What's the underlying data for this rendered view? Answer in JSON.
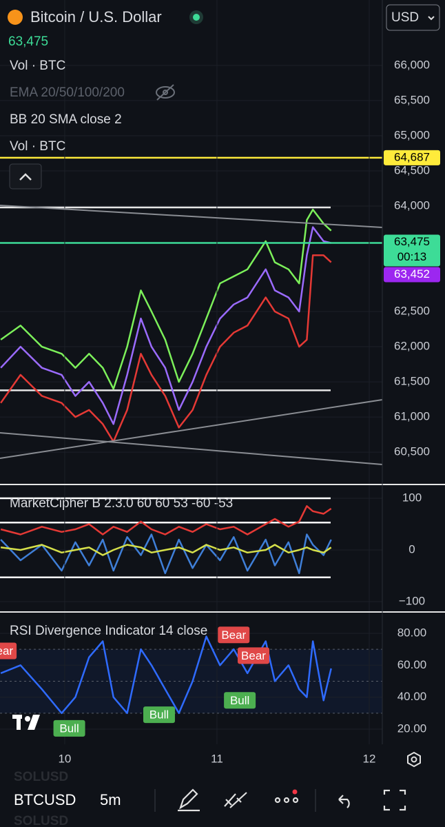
{
  "header": {
    "title": "Bitcoin / U.S. Dollar",
    "price": "63,475",
    "currency": "USD",
    "indicators": [
      "Vol · BTC",
      "EMA 20/50/100/200",
      "BB 20 SMA close 2",
      "Vol · BTC"
    ]
  },
  "toolbar": {
    "symbol": "BTCUSD",
    "interval": "5m",
    "ghost": [
      "SOLUSD",
      "SOLUSD"
    ]
  },
  "chart_data": [
    {
      "type": "line",
      "xlim": [
        9.575,
        12.086
      ],
      "x": [
        9.58,
        9.71,
        9.85,
        9.98,
        10.07,
        10.16,
        10.25,
        10.32,
        10.41,
        10.5,
        10.57,
        10.66,
        10.75,
        10.84,
        10.93,
        11.02,
        11.11,
        11.2,
        11.32,
        11.38,
        11.47,
        11.54,
        11.59,
        11.63,
        11.7,
        11.75
      ],
      "ylim": [
        60070,
        66930
      ],
      "yticks": [
        {
          "value": 60500,
          "label": "60,500"
        },
        {
          "value": 61000,
          "label": "61,000"
        },
        {
          "value": 61500,
          "label": "61,500"
        },
        {
          "value": 62000,
          "label": "62,000"
        },
        {
          "value": 62500,
          "label": "62,500"
        },
        {
          "value": 64000,
          "label": "64,000"
        },
        {
          "value": 64500,
          "label": "64,500"
        },
        {
          "value": 65000,
          "label": "65,000"
        },
        {
          "value": 65500,
          "label": "65,500"
        },
        {
          "value": 66000,
          "label": "66,000"
        }
      ],
      "series": [
        {
          "color": "#7cf05a",
          "values": [
            62100,
            62300,
            62000,
            61900,
            61700,
            61900,
            61700,
            61400,
            62000,
            62800,
            62500,
            62100,
            61500,
            61900,
            62400,
            62900,
            63000,
            63100,
            63500,
            63200,
            63100,
            62900,
            63800,
            63950,
            63750,
            63650
          ]
        },
        {
          "color": "#e53935",
          "values": [
            61200,
            61600,
            61300,
            61200,
            61000,
            61100,
            60900,
            60650,
            61100,
            61900,
            61600,
            61300,
            60850,
            61100,
            61600,
            62000,
            62200,
            62300,
            62700,
            62500,
            62400,
            62000,
            62100,
            63300,
            63300,
            63200
          ]
        },
        {
          "color": "#9b6bff",
          "values": [
            61700,
            62000,
            61700,
            61600,
            61300,
            61500,
            61200,
            60900,
            61600,
            62400,
            62000,
            61700,
            61100,
            61500,
            62000,
            62400,
            62600,
            62700,
            63100,
            62800,
            62700,
            62500,
            63300,
            63700,
            63500,
            63475
          ]
        }
      ],
      "hlines": [
        {
          "value": 63980,
          "color": "#e6e6e6"
        },
        {
          "value": 61380,
          "color": "#e6e6e6"
        }
      ],
      "price_tags": [
        {
          "value": 64687,
          "label": "64,687",
          "color": "#ffeb3b",
          "line": true
        },
        {
          "value": 63475,
          "label": "63,475",
          "sub": "00:13",
          "color": "#3ddc97",
          "line": true
        },
        {
          "value": 63452,
          "label": "63,452",
          "color": "#9c27f0",
          "line": false
        }
      ]
    },
    {
      "type": "line",
      "title": "MarketCipher B 2.3.0 60 60 53 -60 -53",
      "xlim": [
        9.575,
        12.086
      ],
      "x": [
        9.58,
        9.71,
        9.85,
        9.98,
        10.07,
        10.16,
        10.25,
        10.32,
        10.41,
        10.5,
        10.57,
        10.66,
        10.75,
        10.84,
        10.93,
        11.02,
        11.11,
        11.2,
        11.32,
        11.38,
        11.47,
        11.54,
        11.59,
        11.63,
        11.7,
        11.75
      ],
      "ylim": [
        -116,
        124
      ],
      "yticks": [
        {
          "value": -100,
          "label": "−100"
        },
        0,
        100
      ],
      "series": [
        {
          "color": "#3f7fd8",
          "values": [
            20,
            -20,
            10,
            -40,
            15,
            -30,
            20,
            -40,
            25,
            -10,
            30,
            -45,
            20,
            -35,
            10,
            -20,
            25,
            -40,
            20,
            -30,
            15,
            -45,
            30,
            10,
            -10,
            20
          ]
        },
        {
          "color": "#e53935",
          "values": [
            40,
            30,
            45,
            35,
            40,
            50,
            30,
            45,
            35,
            55,
            40,
            30,
            45,
            35,
            50,
            40,
            45,
            30,
            50,
            60,
            45,
            55,
            85,
            75,
            70,
            80
          ]
        },
        {
          "color": "#d6e04a",
          "values": [
            5,
            0,
            10,
            -5,
            0,
            5,
            -10,
            0,
            10,
            5,
            -5,
            0,
            5,
            -5,
            10,
            0,
            5,
            -5,
            0,
            10,
            -5,
            0,
            5,
            0,
            -5,
            5
          ]
        }
      ],
      "hlines": [
        {
          "value": 100,
          "color": "#ffffff"
        },
        {
          "value": 53,
          "color": "#ffffff"
        },
        {
          "value": -53,
          "color": "#ffffff"
        }
      ]
    },
    {
      "type": "line",
      "title": "RSI Divergence Indicator 14 close",
      "xlim": [
        9.575,
        12.086
      ],
      "xticks": [
        10,
        11,
        12
      ],
      "x": [
        9.58,
        9.71,
        9.85,
        9.98,
        10.07,
        10.16,
        10.25,
        10.32,
        10.41,
        10.5,
        10.57,
        10.66,
        10.75,
        10.84,
        10.93,
        11.02,
        11.11,
        11.2,
        11.32,
        11.38,
        11.47,
        11.54,
        11.59,
        11.63,
        11.7,
        11.75
      ],
      "ylim": [
        10.5,
        92.5
      ],
      "yticks": [
        {
          "value": 20,
          "label": "20.00"
        },
        {
          "value": 40,
          "label": "40.00"
        },
        {
          "value": 60,
          "label": "60.00"
        },
        {
          "value": 80,
          "label": "80.00"
        }
      ],
      "series": [
        {
          "color": "#2f6bff",
          "values": [
            55,
            60,
            45,
            30,
            40,
            65,
            75,
            40,
            30,
            70,
            60,
            45,
            30,
            50,
            78,
            60,
            70,
            55,
            75,
            50,
            60,
            45,
            40,
            75,
            38,
            58
          ]
        }
      ],
      "hlines": [
        {
          "value": 70,
          "color": "#5a5f6a"
        },
        {
          "value": 50,
          "color": "#5a5f6a"
        },
        {
          "value": 30,
          "color": "#5a5f6a"
        }
      ],
      "annotations": [
        {
          "text": "Bear",
          "x": 9.58,
          "y": 69,
          "color": "#e04848"
        },
        {
          "text": "Bear",
          "x": 11.11,
          "y": 79,
          "color": "#e04848"
        },
        {
          "text": "Bear",
          "x": 11.24,
          "y": 66,
          "color": "#e04848"
        },
        {
          "text": "Bull",
          "x": 10.03,
          "y": 20.5,
          "color": "#4caf50"
        },
        {
          "text": "Bull",
          "x": 10.62,
          "y": 29,
          "color": "#4caf50"
        },
        {
          "text": "Bull",
          "x": 11.15,
          "y": 38,
          "color": "#4caf50"
        }
      ]
    }
  ]
}
